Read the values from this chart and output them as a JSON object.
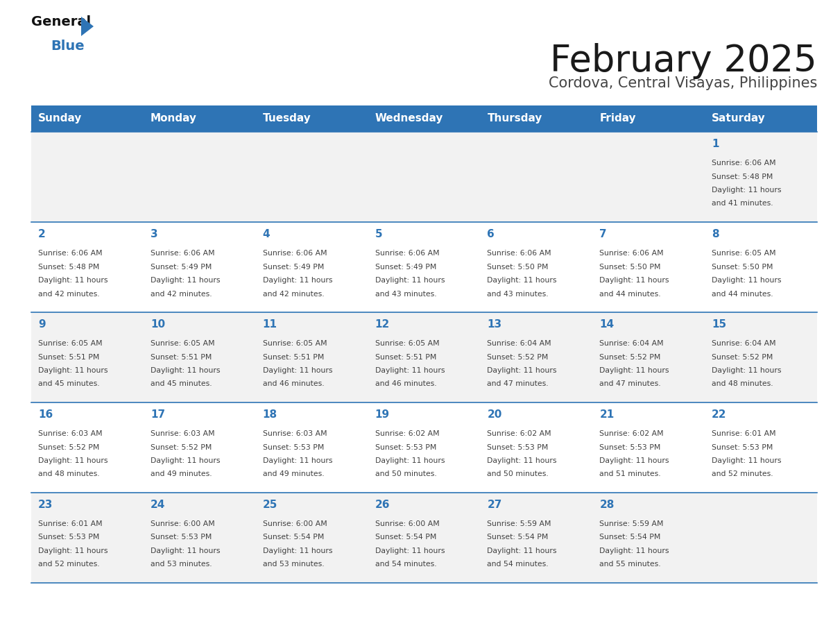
{
  "title": "February 2025",
  "subtitle": "Cordova, Central Visayas, Philippines",
  "days_of_week": [
    "Sunday",
    "Monday",
    "Tuesday",
    "Wednesday",
    "Thursday",
    "Friday",
    "Saturday"
  ],
  "header_bg": "#2E74B5",
  "header_text_color": "#FFFFFF",
  "row_bg_odd": "#F2F2F2",
  "row_bg_even": "#FFFFFF",
  "border_color": "#2E74B5",
  "day_number_color": "#2E74B5",
  "text_color": "#404040",
  "calendar_data": [
    {
      "day": 1,
      "col": 6,
      "row": 0,
      "sunrise": "6:06 AM",
      "sunset": "5:48 PM",
      "daylight": "11 hours and 41 minutes."
    },
    {
      "day": 2,
      "col": 0,
      "row": 1,
      "sunrise": "6:06 AM",
      "sunset": "5:48 PM",
      "daylight": "11 hours and 42 minutes."
    },
    {
      "day": 3,
      "col": 1,
      "row": 1,
      "sunrise": "6:06 AM",
      "sunset": "5:49 PM",
      "daylight": "11 hours and 42 minutes."
    },
    {
      "day": 4,
      "col": 2,
      "row": 1,
      "sunrise": "6:06 AM",
      "sunset": "5:49 PM",
      "daylight": "11 hours and 42 minutes."
    },
    {
      "day": 5,
      "col": 3,
      "row": 1,
      "sunrise": "6:06 AM",
      "sunset": "5:49 PM",
      "daylight": "11 hours and 43 minutes."
    },
    {
      "day": 6,
      "col": 4,
      "row": 1,
      "sunrise": "6:06 AM",
      "sunset": "5:50 PM",
      "daylight": "11 hours and 43 minutes."
    },
    {
      "day": 7,
      "col": 5,
      "row": 1,
      "sunrise": "6:06 AM",
      "sunset": "5:50 PM",
      "daylight": "11 hours and 44 minutes."
    },
    {
      "day": 8,
      "col": 6,
      "row": 1,
      "sunrise": "6:05 AM",
      "sunset": "5:50 PM",
      "daylight": "11 hours and 44 minutes."
    },
    {
      "day": 9,
      "col": 0,
      "row": 2,
      "sunrise": "6:05 AM",
      "sunset": "5:51 PM",
      "daylight": "11 hours and 45 minutes."
    },
    {
      "day": 10,
      "col": 1,
      "row": 2,
      "sunrise": "6:05 AM",
      "sunset": "5:51 PM",
      "daylight": "11 hours and 45 minutes."
    },
    {
      "day": 11,
      "col": 2,
      "row": 2,
      "sunrise": "6:05 AM",
      "sunset": "5:51 PM",
      "daylight": "11 hours and 46 minutes."
    },
    {
      "day": 12,
      "col": 3,
      "row": 2,
      "sunrise": "6:05 AM",
      "sunset": "5:51 PM",
      "daylight": "11 hours and 46 minutes."
    },
    {
      "day": 13,
      "col": 4,
      "row": 2,
      "sunrise": "6:04 AM",
      "sunset": "5:52 PM",
      "daylight": "11 hours and 47 minutes."
    },
    {
      "day": 14,
      "col": 5,
      "row": 2,
      "sunrise": "6:04 AM",
      "sunset": "5:52 PM",
      "daylight": "11 hours and 47 minutes."
    },
    {
      "day": 15,
      "col": 6,
      "row": 2,
      "sunrise": "6:04 AM",
      "sunset": "5:52 PM",
      "daylight": "11 hours and 48 minutes."
    },
    {
      "day": 16,
      "col": 0,
      "row": 3,
      "sunrise": "6:03 AM",
      "sunset": "5:52 PM",
      "daylight": "11 hours and 48 minutes."
    },
    {
      "day": 17,
      "col": 1,
      "row": 3,
      "sunrise": "6:03 AM",
      "sunset": "5:52 PM",
      "daylight": "11 hours and 49 minutes."
    },
    {
      "day": 18,
      "col": 2,
      "row": 3,
      "sunrise": "6:03 AM",
      "sunset": "5:53 PM",
      "daylight": "11 hours and 49 minutes."
    },
    {
      "day": 19,
      "col": 3,
      "row": 3,
      "sunrise": "6:02 AM",
      "sunset": "5:53 PM",
      "daylight": "11 hours and 50 minutes."
    },
    {
      "day": 20,
      "col": 4,
      "row": 3,
      "sunrise": "6:02 AM",
      "sunset": "5:53 PM",
      "daylight": "11 hours and 50 minutes."
    },
    {
      "day": 21,
      "col": 5,
      "row": 3,
      "sunrise": "6:02 AM",
      "sunset": "5:53 PM",
      "daylight": "11 hours and 51 minutes."
    },
    {
      "day": 22,
      "col": 6,
      "row": 3,
      "sunrise": "6:01 AM",
      "sunset": "5:53 PM",
      "daylight": "11 hours and 52 minutes."
    },
    {
      "day": 23,
      "col": 0,
      "row": 4,
      "sunrise": "6:01 AM",
      "sunset": "5:53 PM",
      "daylight": "11 hours and 52 minutes."
    },
    {
      "day": 24,
      "col": 1,
      "row": 4,
      "sunrise": "6:00 AM",
      "sunset": "5:53 PM",
      "daylight": "11 hours and 53 minutes."
    },
    {
      "day": 25,
      "col": 2,
      "row": 4,
      "sunrise": "6:00 AM",
      "sunset": "5:54 PM",
      "daylight": "11 hours and 53 minutes."
    },
    {
      "day": 26,
      "col": 3,
      "row": 4,
      "sunrise": "6:00 AM",
      "sunset": "5:54 PM",
      "daylight": "11 hours and 54 minutes."
    },
    {
      "day": 27,
      "col": 4,
      "row": 4,
      "sunrise": "5:59 AM",
      "sunset": "5:54 PM",
      "daylight": "11 hours and 54 minutes."
    },
    {
      "day": 28,
      "col": 5,
      "row": 4,
      "sunrise": "5:59 AM",
      "sunset": "5:54 PM",
      "daylight": "11 hours and 55 minutes."
    }
  ],
  "num_rows": 5,
  "logo_triangle_color": "#2E74B5"
}
